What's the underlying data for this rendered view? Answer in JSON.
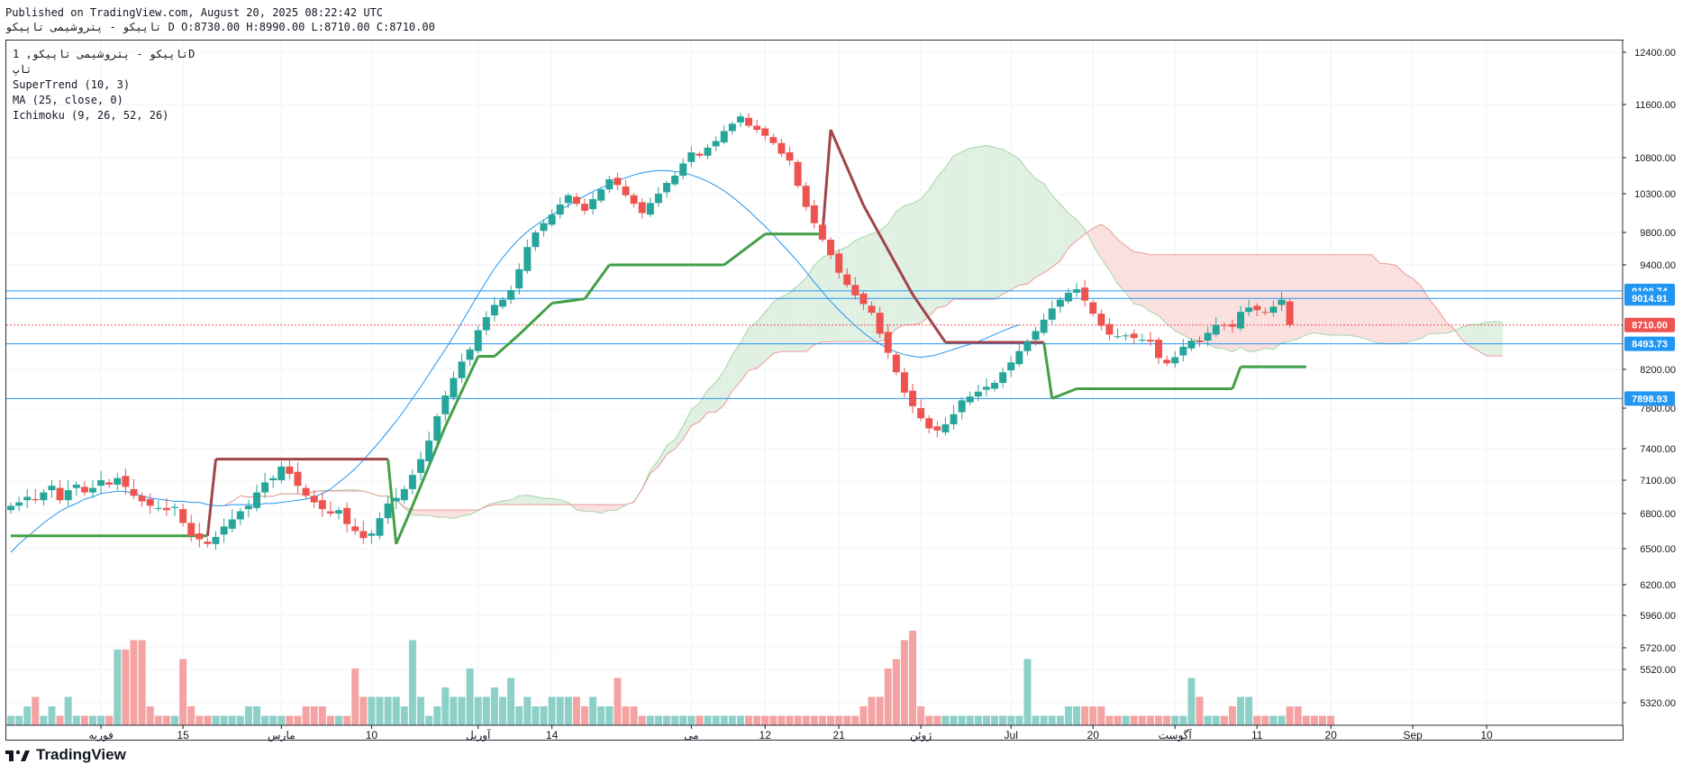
{
  "header": {
    "published": "Published on TradingView.com, August 20, 2025 08:22:42 UTC",
    "ohlc": "تاپیکو - پتروشیمی تاپیکو D O:8730.00 H:8990.00 L:8710.00 C:8710.00"
  },
  "legend": {
    "symbol": "تاپیکو - پتروشیمی تاپیکو, 1D",
    "extra": "تاپ",
    "supertrend": "SuperTrend (10, 3)",
    "ma": "MA (25, close, 0)",
    "ichimoku": "Ichimoku (9, 26, 52, 26)"
  },
  "footer": {
    "brand": "TradingView"
  },
  "colors": {
    "up": "#26a69a",
    "down": "#ef5350",
    "st_up": "#43a047",
    "st_down": "#a1444a",
    "ma": "#2196f3",
    "cloud_bull": "#e0f0e2",
    "cloud_bear": "#fbe0e0",
    "hline": "#2196f3"
  },
  "chart_data": {
    "type": "candlestick",
    "title": "تاپیکو - پتروشیمی تاپیکو, 1D",
    "ylim": [
      5150,
      12700
    ],
    "y_ticks": [
      12400,
      11600,
      10800,
      10300,
      9800,
      9400,
      8200,
      7800,
      7400,
      7100,
      6800,
      6500,
      6200,
      5960,
      5720,
      5520,
      5320
    ],
    "x_ticks": [
      "فوریه",
      "15",
      "مارس",
      "10",
      "آوریل",
      "14",
      "می",
      "12",
      "21",
      "ژوئن",
      "Jul",
      "20",
      "آگوست",
      "11",
      "20",
      "Sep",
      "10"
    ],
    "x_tick_index": [
      11,
      21,
      33,
      44,
      57,
      66,
      83,
      92,
      101,
      111,
      122,
      132,
      142,
      152,
      161,
      171,
      180
    ],
    "price_labels": [
      {
        "value": 9100.74,
        "label": "9100.74",
        "color": "#2196f3"
      },
      {
        "value": 9014.91,
        "label": "9014.91",
        "color": "#2196f3"
      },
      {
        "value": 8710.0,
        "label": "8710.00",
        "color": "#ef5350"
      },
      {
        "value": 8493.73,
        "label": "8493.73",
        "color": "#2196f3"
      },
      {
        "value": 7898.93,
        "label": "7898.93",
        "color": "#2196f3"
      }
    ],
    "closes": [
      6870,
      6900,
      6950,
      6920,
      6990,
      7050,
      6920,
      7010,
      7060,
      6990,
      7030,
      7100,
      7060,
      7120,
      7040,
      6960,
      6910,
      6870,
      6850,
      6830,
      6860,
      6720,
      6610,
      6580,
      6540,
      6600,
      6690,
      6750,
      6820,
      6870,
      6990,
      7080,
      7120,
      7230,
      7160,
      7050,
      6960,
      6900,
      6840,
      6800,
      6830,
      6710,
      6650,
      6590,
      6630,
      6760,
      6890,
      6940,
      7020,
      7150,
      7300,
      7480,
      7720,
      7930,
      8110,
      8290,
      8430,
      8650,
      8800,
      8940,
      9000,
      9110,
      9350,
      9620,
      9800,
      9920,
      10030,
      10160,
      10280,
      10170,
      10080,
      10230,
      10360,
      10500,
      10420,
      10280,
      10170,
      10050,
      10180,
      10300,
      10450,
      10550,
      10720,
      10880,
      10830,
      10950,
      11050,
      11200,
      11310,
      11420,
      11280,
      11220,
      11130,
      11020,
      10860,
      10760,
      10410,
      10130,
      9920,
      9710,
      9520,
      9310,
      9170,
      9050,
      8950,
      8850,
      8610,
      8390,
      8170,
      7960,
      7820,
      7700,
      7600,
      7580,
      7640,
      7740,
      7880,
      7920,
      7970,
      8020,
      8060,
      8170,
      8280,
      8410,
      8520,
      8640,
      8770,
      8900,
      9000,
      9080,
      9120,
      8990,
      8840,
      8700,
      8600,
      8580,
      8590,
      8560,
      8540,
      8520,
      8330,
      8270,
      8340,
      8460,
      8530,
      8510,
      8620,
      8710,
      8700,
      8690,
      8860,
      8910,
      8880,
      8850,
      8920,
      9000,
      8710
    ],
    "ma25": [
      6470,
      6540,
      6600,
      6660,
      6720,
      6770,
      6820,
      6860,
      6890,
      6930,
      6950,
      6980,
      6990,
      7000,
      7000,
      6980,
      6960,
      6940,
      6930,
      6920,
      6910,
      6910,
      6900,
      6900,
      6880,
      6870,
      6870,
      6880,
      6880,
      6880,
      6880,
      6890,
      6890,
      6900,
      6910,
      6920,
      6930,
      6950,
      6980,
      7020,
      7080,
      7140,
      7210,
      7290,
      7380,
      7470,
      7570,
      7670,
      7780,
      7900,
      8020,
      8150,
      8290,
      8430,
      8580,
      8740,
      8900,
      9060,
      9210,
      9360,
      9490,
      9610,
      9720,
      9810,
      9890,
      9960,
      10030,
      10090,
      10150,
      10210,
      10270,
      10330,
      10380,
      10430,
      10480,
      10520,
      10560,
      10590,
      10610,
      10620,
      10620,
      10610,
      10590,
      10560,
      10520,
      10470,
      10410,
      10340,
      10260,
      10170,
      10080,
      9980,
      9880,
      9770,
      9660,
      9550,
      9440,
      9320,
      9200,
      9090,
      8980,
      8880,
      8790,
      8700,
      8620,
      8550,
      8490,
      8440,
      8400,
      8370,
      8350,
      8340,
      8350,
      8370,
      8400,
      8430,
      8460,
      8490,
      8520,
      8560,
      8600,
      8640,
      8680,
      8710
    ],
    "supertrend": [
      {
        "x": 0,
        "y": 6610,
        "dir": "up"
      },
      {
        "x": 24,
        "y": 6610,
        "dir": "up"
      },
      {
        "x": 25,
        "y": 7300,
        "dir": "down"
      },
      {
        "x": 46,
        "y": 7300,
        "dir": "down"
      },
      {
        "x": 47,
        "y": 6540,
        "dir": "up"
      },
      {
        "x": 49,
        "y": 6870,
        "dir": "up"
      },
      {
        "x": 53,
        "y": 7620,
        "dir": "up"
      },
      {
        "x": 57,
        "y": 8350,
        "dir": "up"
      },
      {
        "x": 59,
        "y": 8350,
        "dir": "up"
      },
      {
        "x": 62,
        "y": 8600,
        "dir": "up"
      },
      {
        "x": 66,
        "y": 8960,
        "dir": "up"
      },
      {
        "x": 70,
        "y": 9010,
        "dir": "up"
      },
      {
        "x": 73,
        "y": 9400,
        "dir": "up"
      },
      {
        "x": 87,
        "y": 9400,
        "dir": "up"
      },
      {
        "x": 92,
        "y": 9780,
        "dir": "up"
      },
      {
        "x": 99,
        "y": 9780,
        "dir": "up"
      },
      {
        "x": 100,
        "y": 11220,
        "dir": "down"
      },
      {
        "x": 104,
        "y": 10150,
        "dir": "down"
      },
      {
        "x": 110,
        "y": 9060,
        "dir": "down"
      },
      {
        "x": 114,
        "y": 8510,
        "dir": "down"
      },
      {
        "x": 126,
        "y": 8510,
        "dir": "down"
      },
      {
        "x": 127,
        "y": 7900,
        "dir": "up"
      },
      {
        "x": 130,
        "y": 8000,
        "dir": "up"
      },
      {
        "x": 149,
        "y": 8000,
        "dir": "up"
      },
      {
        "x": 150,
        "y": 8230,
        "dir": "up"
      },
      {
        "x": 158,
        "y": 8230,
        "dir": "up"
      }
    ],
    "volume": [
      0.1,
      0.1,
      0.2,
      0.3,
      0.1,
      0.2,
      0.1,
      0.3,
      0.1,
      0.1,
      0.1,
      0.1,
      0.1,
      0.8,
      0.8,
      0.9,
      0.9,
      0.2,
      0.1,
      0.1,
      0.1,
      0.7,
      0.2,
      0.1,
      0.1,
      0.1,
      0.1,
      0.1,
      0.1,
      0.2,
      0.2,
      0.1,
      0.1,
      0.1,
      0.1,
      0.1,
      0.2,
      0.2,
      0.2,
      0.1,
      0.1,
      0.1,
      0.6,
      0.3,
      0.3,
      0.3,
      0.3,
      0.3,
      0.2,
      0.9,
      0.3,
      0.1,
      0.2,
      0.4,
      0.3,
      0.3,
      0.6,
      0.3,
      0.3,
      0.4,
      0.3,
      0.5,
      0.2,
      0.3,
      0.2,
      0.2,
      0.3,
      0.3,
      0.3,
      0.3,
      0.2,
      0.3,
      0.2,
      0.2,
      0.5,
      0.2,
      0.2,
      0.1,
      0.1,
      0.1,
      0.1,
      0.1,
      0.1,
      0.1,
      0.1,
      0.1,
      0.1,
      0.1,
      0.1,
      0.1,
      0.1,
      0.1,
      0.1,
      0.1,
      0.1,
      0.1,
      0.1,
      0.1,
      0.1,
      0.1,
      0.1,
      0.1,
      0.1,
      0.1,
      0.2,
      0.3,
      0.3,
      0.6,
      0.7,
      0.9,
      1.0,
      0.2,
      0.1,
      0.1,
      0.1,
      0.1,
      0.1,
      0.1,
      0.1,
      0.1,
      0.1,
      0.1,
      0.1,
      0.1,
      0.7,
      0.1,
      0.1,
      0.1,
      0.1,
      0.2,
      0.2,
      0.2,
      0.2,
      0.2,
      0.1,
      0.1,
      0.1,
      0.1,
      0.1,
      0.1,
      0.1,
      0.1,
      0.1,
      0.1,
      0.5,
      0.3,
      0.1,
      0.1,
      0.1,
      0.2,
      0.3,
      0.3,
      0.1,
      0.1,
      0.1,
      0.1,
      0.2,
      0.2,
      0.1,
      0.1,
      0.1,
      0.1
    ],
    "overlay_texts": {
      "brand": "TradingView"
    }
  }
}
